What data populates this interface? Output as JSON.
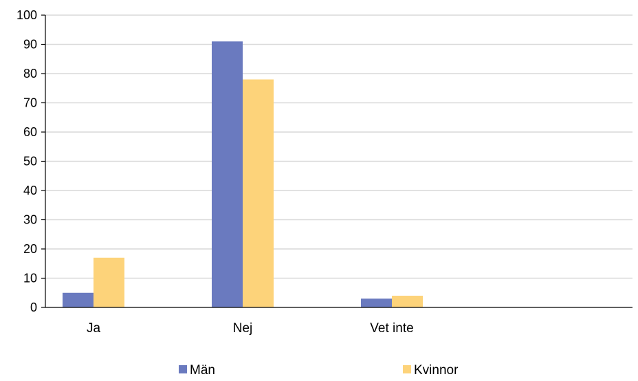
{
  "chart_data": {
    "type": "bar",
    "categories": [
      "Ja",
      "Nej",
      "Vet inte"
    ],
    "series": [
      {
        "name": "Män",
        "values": [
          5,
          91,
          3
        ],
        "color": "#6A7ABF"
      },
      {
        "name": "Kvinnor",
        "values": [
          17,
          78,
          4
        ],
        "color": "#FDD37A"
      }
    ],
    "ylim": [
      0,
      100
    ],
    "yticks": [
      0,
      10,
      20,
      30,
      40,
      50,
      60,
      70,
      80,
      90,
      100
    ],
    "grid": true,
    "gridColor": "#D9D9D9",
    "legend_position": "bottom",
    "title": "",
    "xlabel": "",
    "ylabel": ""
  }
}
